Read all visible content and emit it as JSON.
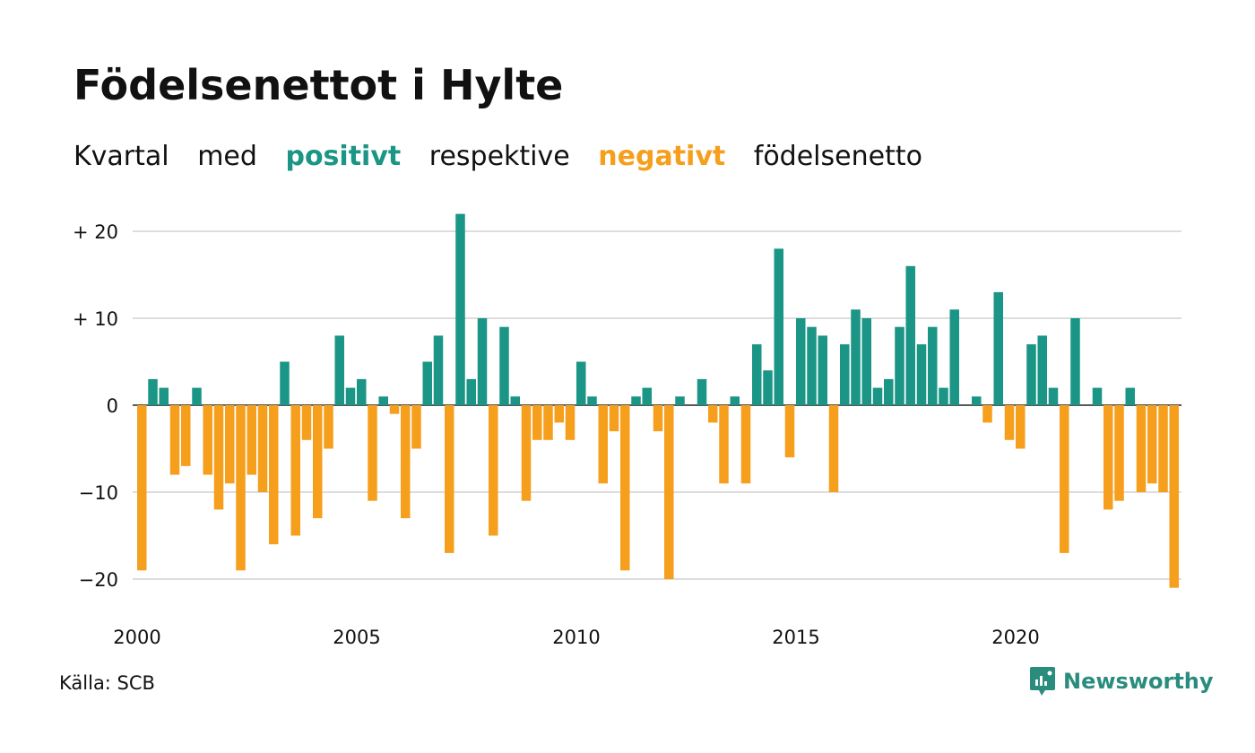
{
  "title": "Födelsenettot i Hylte",
  "subtitle": {
    "part1": "Kvartal",
    "part2": "med",
    "positive": "positivt",
    "part3": "respektive",
    "negative": "negativt",
    "part4": "födelsenetto"
  },
  "source": "Källa: SCB",
  "brand": "Newsworthy",
  "colors": {
    "positive": "#1a9586",
    "negative": "#f59f1d",
    "grid": "#dddddd",
    "brand": "#2a8c7d"
  },
  "chart_data": {
    "type": "bar",
    "x_start": "2000 Q1",
    "x_tick_labels": [
      "2000",
      "2005",
      "2010",
      "2015",
      "2020"
    ],
    "y_tick_values": [
      20,
      10,
      0,
      -10,
      -20
    ],
    "y_tick_labels": [
      "+ 20",
      "+ 10",
      "0",
      "−10",
      "−20"
    ],
    "ylim": [
      -23,
      23
    ],
    "grid": true,
    "values": [
      -19,
      3,
      2,
      -8,
      -7,
      2,
      -8,
      -12,
      -9,
      -19,
      -8,
      -10,
      -16,
      5,
      -15,
      -4,
      -13,
      -5,
      8,
      2,
      3,
      -11,
      1,
      -1,
      -13,
      -5,
      5,
      8,
      -17,
      22,
      3,
      10,
      -15,
      9,
      1,
      -11,
      -4,
      -4,
      -2,
      -4,
      5,
      1,
      -9,
      -3,
      -19,
      1,
      2,
      -3,
      -20,
      1,
      0,
      3,
      -2,
      -9,
      1,
      -9,
      7,
      4,
      18,
      -6,
      10,
      9,
      8,
      -10,
      7,
      11,
      10,
      2,
      3,
      9,
      16,
      7,
      9,
      2,
      11,
      0,
      1,
      -2,
      13,
      -4,
      -5,
      7,
      8,
      2,
      -17,
      10,
      0,
      2,
      -12,
      -11,
      2,
      -10,
      -9,
      -10,
      -21
    ]
  }
}
